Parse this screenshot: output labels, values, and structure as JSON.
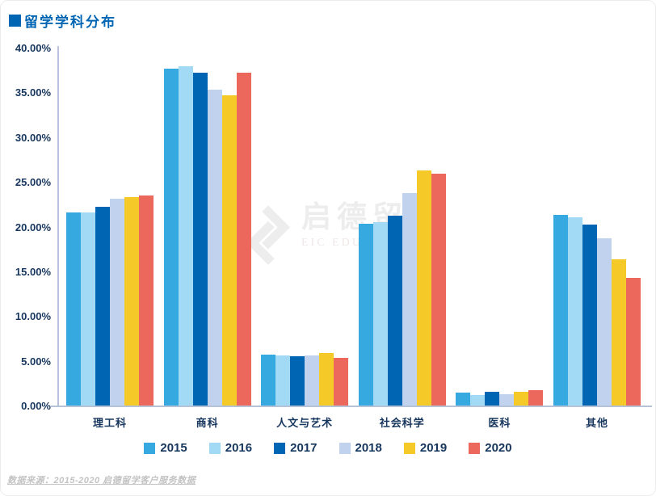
{
  "header": {
    "title": "留学学科分布",
    "accent_color": "#0065B3"
  },
  "watermark": {
    "cn": "启德留学",
    "en": "EIC EDUCATION"
  },
  "footer": {
    "source": "数据来源：2015-2020 启德留学客户服务数据"
  },
  "chart_data": {
    "type": "bar",
    "title": "留学学科分布",
    "categories": [
      "理工科",
      "商科",
      "人文与艺术",
      "社会科学",
      "医科",
      "其他"
    ],
    "series": [
      {
        "name": "2015",
        "color": "#35A9E0",
        "values": [
          21.7,
          37.7,
          5.8,
          20.4,
          1.5,
          21.4
        ]
      },
      {
        "name": "2016",
        "color": "#A2D9F5",
        "values": [
          21.7,
          38.0,
          5.7,
          20.6,
          1.3,
          21.1
        ]
      },
      {
        "name": "2017",
        "color": "#0065B3",
        "values": [
          22.3,
          37.3,
          5.6,
          21.3,
          1.6,
          20.3
        ]
      },
      {
        "name": "2018",
        "color": "#C0D2ED",
        "values": [
          23.2,
          35.4,
          5.7,
          23.8,
          1.4,
          18.8
        ]
      },
      {
        "name": "2019",
        "color": "#F5C928",
        "values": [
          23.4,
          34.8,
          6.0,
          26.4,
          1.6,
          16.4
        ]
      },
      {
        "name": "2020",
        "color": "#EC685C",
        "values": [
          23.6,
          37.3,
          5.4,
          26.0,
          1.8,
          14.4
        ]
      }
    ],
    "ylim": [
      0,
      40
    ],
    "y_ticks": [
      "40.00%",
      "35.00%",
      "30.00%",
      "25.00%",
      "20.00%",
      "15.00%",
      "10.00%",
      "5.00%",
      "0.00%"
    ],
    "grid": false,
    "legend_position": "bottom",
    "axis_colors": {
      "y_axis_line": "#B9C2E3",
      "baseline": "#B6C3D6",
      "tick_text": "#17365D"
    }
  }
}
